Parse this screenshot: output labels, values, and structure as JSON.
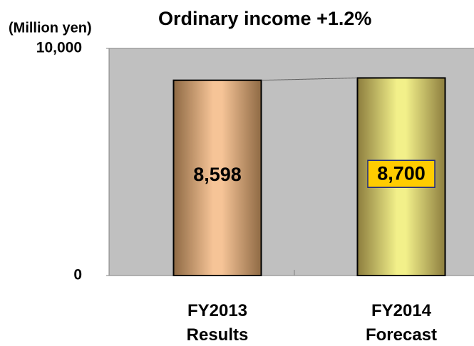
{
  "chart_data": {
    "type": "bar",
    "title": "Ordinary income  +1.2%",
    "y_axis_label": "(Million yen)",
    "categories": [
      "FY2013\nResults",
      "FY2014\nForecast"
    ],
    "values": [
      8598,
      8700
    ],
    "value_labels": [
      "8,598",
      "8,700"
    ],
    "colors": [
      "#f6c497",
      "#f2f08a"
    ],
    "ylim": [
      0,
      10000
    ],
    "yticks": [
      0,
      {
        "value": 10000,
        "label": "10,000"
      }
    ],
    "grid": false
  }
}
